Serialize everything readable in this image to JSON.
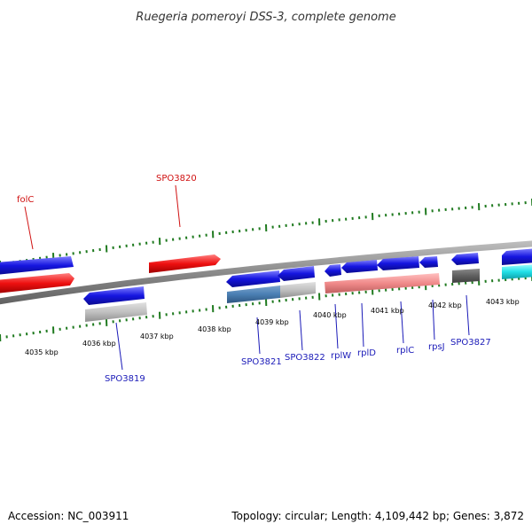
{
  "title": "Ruegeria pomeroyi DSS-3, complete genome",
  "footer": {
    "accession": "Accession: NC_003911",
    "summary": "Topology: circular; Length: 4,109,442 bp; Genes: 3,872"
  },
  "scale": {
    "unit": "kbp",
    "ticks": [
      "4035 kbp",
      "4036 kbp",
      "4037 kbp",
      "4038 kbp",
      "4039 kbp",
      "4040 kbp",
      "4041 kbp",
      "4042 kbp",
      "4043 kbp"
    ]
  },
  "colors": {
    "forward_gene": "#1515e0",
    "reverse_gene": "#1515e0",
    "highlight_gene": "#e81010",
    "tick": "#1f7a1f",
    "backbone": "#8a8a8a",
    "label_forward": "#d01010",
    "label_reverse": "#1a1ab8"
  },
  "genes": {
    "folC": "folC",
    "SPO3820": "SPO3820",
    "SPO3819": "SPO3819",
    "SPO3821": "SPO3821",
    "SPO3822": "SPO3822",
    "rplW": "rplW",
    "rplD": "rplD",
    "rplC": "rplC",
    "rpsJ": "rpsJ",
    "SPO3827": "SPO3827"
  }
}
